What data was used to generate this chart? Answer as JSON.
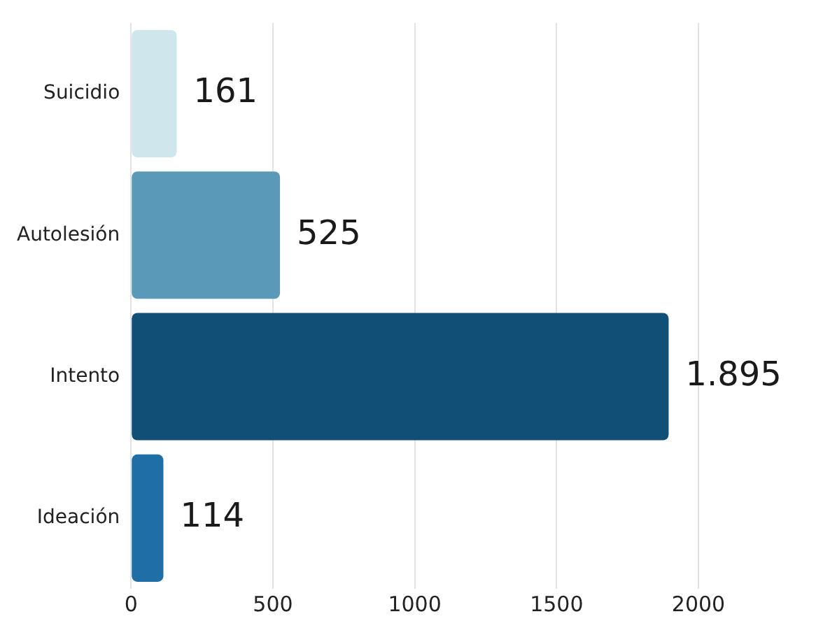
{
  "chart_data": {
    "type": "bar",
    "orientation": "horizontal",
    "categories": [
      "Suicidio",
      "Autolesión",
      "Intento",
      "Ideación"
    ],
    "values": [
      161,
      525,
      1895,
      114
    ],
    "colors": [
      "#cfe6ec",
      "#5a9ab8",
      "#114f77",
      "#1f6fa6"
    ],
    "value_labels": [
      "161",
      "525",
      "1.895",
      "114"
    ],
    "xlim": [
      0,
      2000
    ],
    "xticks": [
      0,
      500,
      1000,
      1500,
      2000
    ],
    "grid": "x"
  }
}
